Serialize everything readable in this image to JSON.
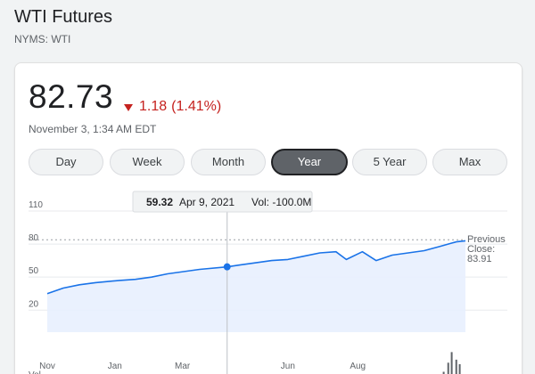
{
  "header": {
    "title": "WTI Futures",
    "exchange": "NYMS: WTI"
  },
  "quote": {
    "price": "82.73",
    "change": "1.18",
    "change_pct": "(1.41%)",
    "timestamp": "November 3, 1:34 AM EDT",
    "down_color": "#c5221f"
  },
  "tabs": [
    {
      "label": "Day",
      "active": false
    },
    {
      "label": "Week",
      "active": false
    },
    {
      "label": "Month",
      "active": false
    },
    {
      "label": "Year",
      "active": true
    },
    {
      "label": "5 Year",
      "active": false
    },
    {
      "label": "Max",
      "active": false
    }
  ],
  "tooltip": {
    "value": "59.32",
    "date": "Apr 9, 2021",
    "vol": "Vol: -100.0M"
  },
  "previous_close": {
    "label_line1": "Previous",
    "label_line2": "Close:",
    "value": "83.91"
  },
  "chart_data": {
    "type": "area",
    "title": "",
    "xlabel": "",
    "ylabel": "",
    "ylim": [
      0,
      110
    ],
    "yticks": [
      20,
      50,
      80,
      110
    ],
    "x_tick_labels": [
      "Nov",
      "Jan",
      "Mar",
      "Jun",
      "Aug"
    ],
    "volume_label": "Vol",
    "line_color": "#1a73e8",
    "fill_color": "#e8f0fe",
    "previous_close_value": 83.91,
    "highlight_date": "2021-04-09",
    "series": [
      {
        "dates": [
          "2020-11-03",
          "2020-11-17",
          "2020-12-01",
          "2020-12-15",
          "2021-01-05",
          "2021-01-19",
          "2021-02-02",
          "2021-02-16",
          "2021-03-02",
          "2021-03-16",
          "2021-04-09",
          "2021-04-20",
          "2021-05-04",
          "2021-05-18",
          "2021-06-01",
          "2021-06-15",
          "2021-06-29",
          "2021-07-13",
          "2021-07-22",
          "2021-08-05",
          "2021-08-17",
          "2021-08-31",
          "2021-09-14",
          "2021-09-28",
          "2021-10-12",
          "2021-10-26",
          "2021-11-03"
        ],
        "values": [
          35,
          40,
          43,
          45,
          47,
          48,
          50,
          53,
          55,
          57,
          59.32,
          61,
          63,
          65,
          66,
          69,
          72,
          73,
          66,
          73,
          65,
          70,
          72,
          74,
          78,
          82,
          83
        ]
      }
    ],
    "volume": {
      "dates": [
        "2021-10-15",
        "2021-10-19",
        "2021-10-22",
        "2021-10-26",
        "2021-10-29"
      ],
      "values": [
        0.25,
        0.55,
        0.9,
        0.65,
        0.5
      ]
    }
  }
}
